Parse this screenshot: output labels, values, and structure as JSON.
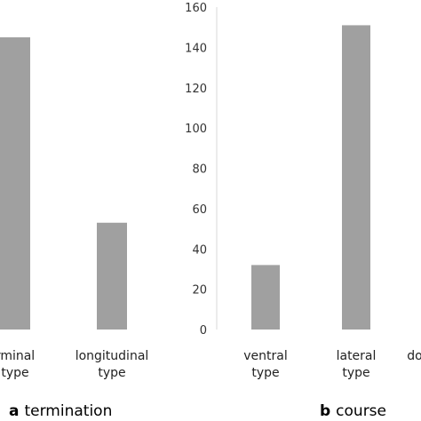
{
  "colors": {
    "bar": "#a0a0a0",
    "gridline": "#d9d9d9"
  },
  "chart_data": [
    {
      "type": "bar",
      "panel": "a",
      "caption_letter": "a",
      "caption_word": "termination",
      "categories": [
        [
          "rminal",
          "type"
        ],
        [
          "longitudinal",
          "type"
        ]
      ],
      "values": [
        145,
        53
      ],
      "ylim": [
        0,
        160
      ],
      "yticks": [],
      "grid": false
    },
    {
      "type": "bar",
      "panel": "b",
      "caption_letter": "b",
      "caption_word": "course",
      "categories": [
        [
          "ventral",
          "type"
        ],
        [
          "lateral",
          "type"
        ],
        [
          "do",
          ""
        ]
      ],
      "values": [
        32,
        151,
        null
      ],
      "ylim": [
        0,
        160
      ],
      "yticks": [
        0,
        20,
        40,
        60,
        80,
        100,
        120,
        140,
        160
      ],
      "grid": false,
      "axis_line": "left"
    }
  ]
}
